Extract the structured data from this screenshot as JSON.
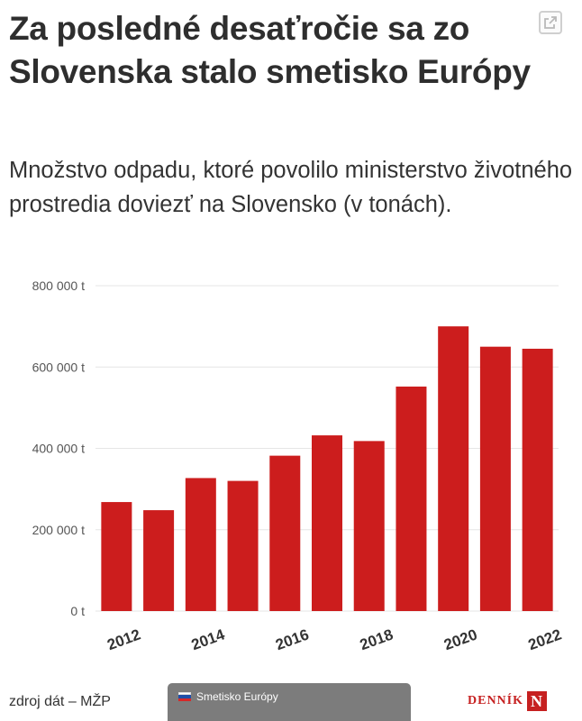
{
  "header": {
    "title": "Za posledné desaťročie sa zo Slovenska stalo smetisko Európy",
    "subtitle": "Množstvo odpadu, ktoré povolilo ministerstvo životného prostredia doviezť na Slovensko (v tonách).",
    "expand_icon": "expand-icon"
  },
  "footer": {
    "source": "zdroj dát – MŽP",
    "story_tab": "Smetisko Európy",
    "logo_text": "DENNÍK",
    "logo_letter": "N"
  },
  "colors": {
    "bar": "#cc1d1d",
    "grid": "#e6e6e6",
    "logo": "#c62020"
  },
  "chart_data": {
    "type": "bar",
    "categories": [
      "2012",
      "2013",
      "2014",
      "2015",
      "2016",
      "2017",
      "2018",
      "2019",
      "2020",
      "2021",
      "2022"
    ],
    "values": [
      268000,
      248000,
      327000,
      320000,
      382000,
      432000,
      418000,
      552000,
      700000,
      650000,
      645000
    ],
    "ylim": [
      0,
      800000
    ],
    "y_ticks": [
      0,
      200000,
      400000,
      600000,
      800000
    ],
    "y_tick_labels": [
      "0 t",
      "200 000 t",
      "400 000 t",
      "600 000 t",
      "800 000 t"
    ],
    "x_tick_labels": [
      "2012",
      "2014",
      "2016",
      "2018",
      "2020",
      "2022"
    ],
    "grid": true
  }
}
